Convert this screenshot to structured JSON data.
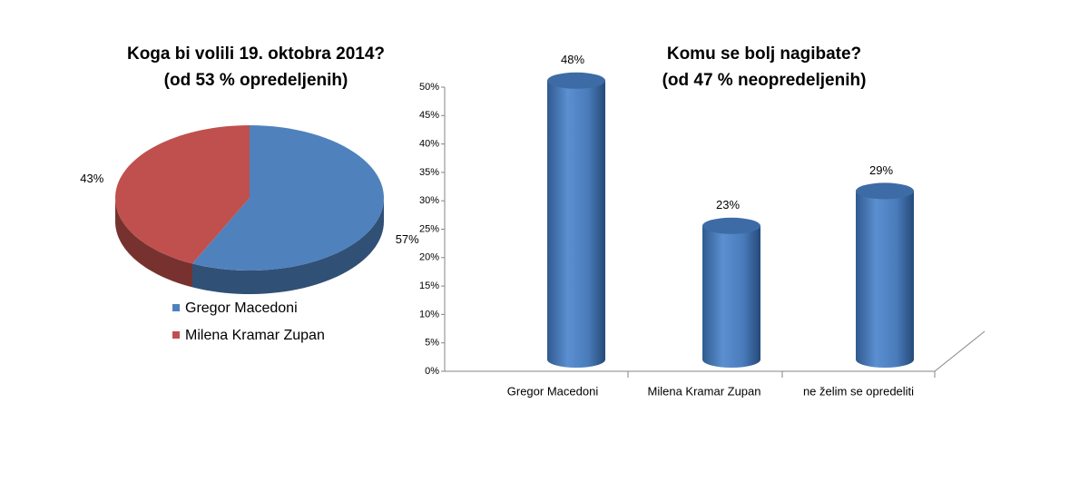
{
  "chart_data": [
    {
      "type": "pie",
      "title": "Koga bi volili 19. oktobra 2014?",
      "subtitle": "(od 53 % opredeljenih)",
      "categories": [
        "Gregor Macedoni",
        "Milena Kramar Zupan"
      ],
      "values": [
        57,
        43
      ],
      "value_labels": [
        "57%",
        "43%"
      ],
      "colors": [
        "#4f81bd",
        "#c0504d"
      ],
      "legend": "bottom"
    },
    {
      "type": "bar",
      "title": "Komu se bolj nagibate?",
      "subtitle": "(od 47 % neopredeljenih)",
      "categories": [
        "Gregor Macedoni",
        "Milena Kramar Zupan",
        "ne želim se opredeliti"
      ],
      "values": [
        48,
        23,
        29
      ],
      "value_labels": [
        "48%",
        "23%",
        "29%"
      ],
      "color": "#4f81bd",
      "ylim": [
        0,
        50
      ],
      "yticks": [
        {
          "value": 0,
          "label": "0%"
        },
        {
          "value": 5,
          "label": "5%"
        },
        {
          "value": 10,
          "label": "10%"
        },
        {
          "value": 15,
          "label": "15%"
        },
        {
          "value": 20,
          "label": "20%"
        },
        {
          "value": 25,
          "label": "25%"
        },
        {
          "value": 30,
          "label": "30%"
        },
        {
          "value": 35,
          "label": "35%"
        },
        {
          "value": 40,
          "label": "40%"
        },
        {
          "value": 45,
          "label": "45%"
        },
        {
          "value": 50,
          "label": "50%"
        }
      ]
    }
  ]
}
